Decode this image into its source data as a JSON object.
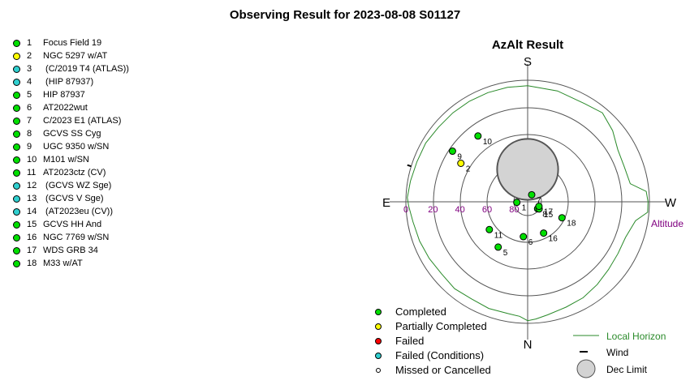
{
  "page_title": "Observing Result for 2023-08-08 S01127",
  "status_colors": {
    "completed": "#00e000",
    "partial": "#ffff00",
    "failed": "#ff0000",
    "failed_conditions": "#30d0d0",
    "missed": "#ffffff"
  },
  "targets": [
    {
      "num": "1",
      "name": "Focus Field 19",
      "status": "completed"
    },
    {
      "num": "2",
      "name": "NGC 5297 w/AT",
      "status": "partial"
    },
    {
      "num": "3",
      "name": " (C/2019 T4 (ATLAS))",
      "status": "failed_conditions"
    },
    {
      "num": "4",
      "name": " (HIP 87937)",
      "status": "failed_conditions"
    },
    {
      "num": "5",
      "name": "HIP 87937",
      "status": "completed"
    },
    {
      "num": "6",
      "name": "AT2022wut",
      "status": "completed"
    },
    {
      "num": "7",
      "name": "C/2023 E1 (ATLAS)",
      "status": "completed"
    },
    {
      "num": "8",
      "name": "GCVS SS Cyg",
      "status": "completed"
    },
    {
      "num": "9",
      "name": "UGC 9350 w/SN",
      "status": "completed"
    },
    {
      "num": "10",
      "name": "M101 w/SN",
      "status": "completed"
    },
    {
      "num": "11",
      "name": "AT2023ctz (CV)",
      "status": "completed"
    },
    {
      "num": "12",
      "name": " (GCVS WZ Sge)",
      "status": "failed_conditions"
    },
    {
      "num": "13",
      "name": " (GCVS V Sge)",
      "status": "failed_conditions"
    },
    {
      "num": "14",
      "name": " (AT2023eu (CV))",
      "status": "failed_conditions"
    },
    {
      "num": "15",
      "name": "GCVS HH And",
      "status": "completed"
    },
    {
      "num": "16",
      "name": "NGC 7769 w/SN",
      "status": "completed"
    },
    {
      "num": "17",
      "name": "WDS GRB 34",
      "status": "completed"
    },
    {
      "num": "18",
      "name": "M33 w/AT",
      "status": "completed"
    }
  ],
  "chart_data": {
    "type": "scatter",
    "projection": "polar azimuth-altitude",
    "title": "AzAlt Result",
    "cardinals": {
      "top": "S",
      "bottom": "N",
      "left": "E",
      "right": "W"
    },
    "altitude_ticks": [
      "80",
      "60",
      "40",
      "20",
      "0"
    ],
    "altitude_label": "Altitude",
    "altitude_tick_values": [
      80,
      60,
      40,
      20,
      0
    ],
    "points": [
      {
        "label": "1",
        "az": 267,
        "alt": 82,
        "status": "completed"
      },
      {
        "label": "2",
        "az": 300,
        "alt": 33,
        "status": "partial"
      },
      {
        "label": "5",
        "az": 213,
        "alt": 50,
        "status": "completed"
      },
      {
        "label": "6",
        "az": 187,
        "alt": 64,
        "status": "completed"
      },
      {
        "label": "7",
        "az": 30,
        "alt": 84,
        "status": "completed"
      },
      {
        "label": "8",
        "az": 125,
        "alt": 81,
        "status": "completed"
      },
      {
        "label": "9",
        "az": 304,
        "alt": 23,
        "status": "completed"
      },
      {
        "label": "10",
        "az": 323,
        "alt": 29,
        "status": "completed"
      },
      {
        "label": "11",
        "az": 234,
        "alt": 55,
        "status": "completed"
      },
      {
        "label": "15",
        "az": 122,
        "alt": 80,
        "status": "completed"
      },
      {
        "label": "16",
        "az": 153,
        "alt": 64,
        "status": "completed"
      },
      {
        "label": "17",
        "az": 112,
        "alt": 81,
        "status": "completed"
      },
      {
        "label": "18",
        "az": 115,
        "alt": 62,
        "status": "completed"
      }
    ],
    "dec_limit": {
      "az": 0,
      "alt": 66,
      "radius_deg": 24
    },
    "wind": {
      "az": 287,
      "label": "Wind"
    },
    "local_horizon": [
      [
        0,
        4
      ],
      [
        15,
        5
      ],
      [
        30,
        6
      ],
      [
        40,
        4
      ],
      [
        50,
        8
      ],
      [
        60,
        13
      ],
      [
        70,
        14
      ],
      [
        80,
        13
      ],
      [
        85,
        2
      ],
      [
        90,
        1
      ],
      [
        95,
        1
      ],
      [
        100,
        9
      ],
      [
        110,
        13
      ],
      [
        120,
        13
      ],
      [
        130,
        12
      ],
      [
        140,
        10
      ],
      [
        150,
        8
      ],
      [
        160,
        7
      ],
      [
        170,
        5
      ],
      [
        176,
        3
      ],
      [
        180,
        2
      ],
      [
        184,
        5
      ],
      [
        190,
        6
      ],
      [
        200,
        6
      ],
      [
        210,
        7
      ],
      [
        220,
        6
      ],
      [
        230,
        7
      ],
      [
        240,
        6
      ],
      [
        250,
        5
      ],
      [
        260,
        4
      ],
      [
        268,
        2
      ],
      [
        272,
        1
      ],
      [
        280,
        2
      ],
      [
        290,
        3
      ],
      [
        300,
        3
      ],
      [
        310,
        4
      ],
      [
        320,
        4
      ],
      [
        330,
        4
      ],
      [
        340,
        4
      ],
      [
        350,
        4
      ],
      [
        360,
        4
      ]
    ],
    "legend": [
      {
        "label": "Completed",
        "status": "completed"
      },
      {
        "label": "Partially Completed",
        "status": "partial"
      },
      {
        "label": "Failed",
        "status": "failed"
      },
      {
        "label": "Failed (Conditions)",
        "status": "failed_conditions"
      },
      {
        "label": "Missed or Cancelled",
        "status": "missed"
      }
    ],
    "legend2": {
      "horizon": "Local Horizon",
      "wind": "Wind",
      "dec_limit": "Dec Limit"
    },
    "horizon_color": "#2a8a2a",
    "altitude_color": "#800080"
  }
}
